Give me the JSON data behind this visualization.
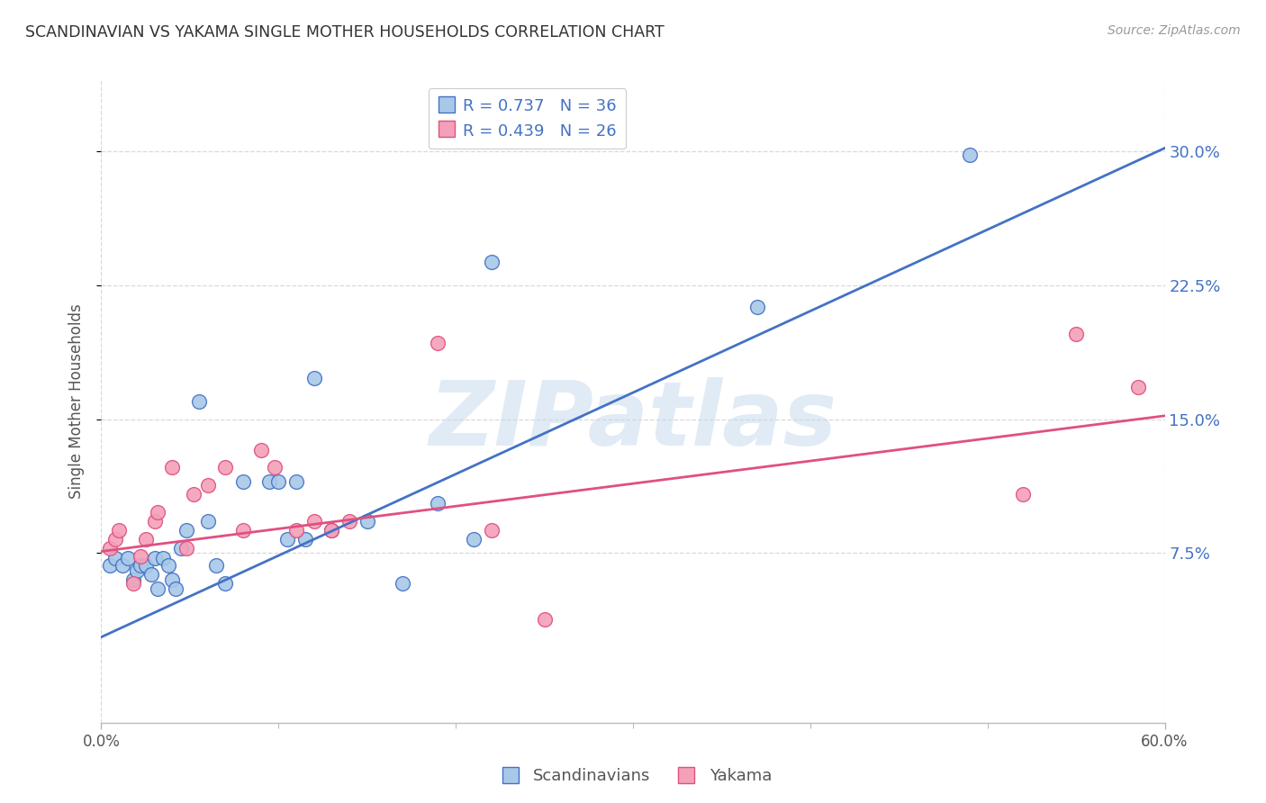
{
  "title": "SCANDINAVIAN VS YAKAMA SINGLE MOTHER HOUSEHOLDS CORRELATION CHART",
  "source": "Source: ZipAtlas.com",
  "ylabel": "Single Mother Households",
  "xlim": [
    0.0,
    0.6
  ],
  "ylim": [
    -0.02,
    0.34
  ],
  "ylabel_vals": [
    0.075,
    0.15,
    0.225,
    0.3
  ],
  "blue_color": "#a8c8e8",
  "pink_color": "#f4a0b8",
  "blue_line_color": "#4472c4",
  "pink_line_color": "#e05080",
  "background_color": "#ffffff",
  "grid_color": "#d8d8d8",
  "legend_label_blue": "R = 0.737   N = 36",
  "legend_label_pink": "R = 0.439   N = 26",
  "watermark": "ZIPatlas",
  "scatter_blue_x": [
    0.005,
    0.008,
    0.012,
    0.015,
    0.018,
    0.02,
    0.022,
    0.025,
    0.028,
    0.03,
    0.032,
    0.035,
    0.038,
    0.04,
    0.042,
    0.045,
    0.048,
    0.055,
    0.06,
    0.065,
    0.07,
    0.08,
    0.095,
    0.1,
    0.105,
    0.11,
    0.115,
    0.12,
    0.13,
    0.15,
    0.17,
    0.19,
    0.21,
    0.22,
    0.37,
    0.49
  ],
  "scatter_blue_y": [
    0.068,
    0.072,
    0.068,
    0.072,
    0.06,
    0.065,
    0.068,
    0.068,
    0.063,
    0.072,
    0.055,
    0.072,
    0.068,
    0.06,
    0.055,
    0.078,
    0.088,
    0.16,
    0.093,
    0.068,
    0.058,
    0.115,
    0.115,
    0.115,
    0.083,
    0.115,
    0.083,
    0.173,
    0.088,
    0.093,
    0.058,
    0.103,
    0.083,
    0.238,
    0.213,
    0.298
  ],
  "scatter_pink_x": [
    0.005,
    0.008,
    0.01,
    0.018,
    0.022,
    0.025,
    0.03,
    0.032,
    0.04,
    0.048,
    0.052,
    0.06,
    0.07,
    0.08,
    0.09,
    0.098,
    0.11,
    0.12,
    0.13,
    0.14,
    0.19,
    0.22,
    0.25,
    0.52,
    0.55,
    0.585
  ],
  "scatter_pink_y": [
    0.078,
    0.083,
    0.088,
    0.058,
    0.073,
    0.083,
    0.093,
    0.098,
    0.123,
    0.078,
    0.108,
    0.113,
    0.123,
    0.088,
    0.133,
    0.123,
    0.088,
    0.093,
    0.088,
    0.093,
    0.193,
    0.088,
    0.038,
    0.108,
    0.198,
    0.168
  ],
  "blue_line_x": [
    0.0,
    0.6
  ],
  "blue_line_y": [
    0.028,
    0.302
  ],
  "pink_line_x": [
    0.0,
    0.6
  ],
  "pink_line_y": [
    0.076,
    0.152
  ],
  "figsize": [
    14.06,
    8.92
  ],
  "dpi": 100
}
